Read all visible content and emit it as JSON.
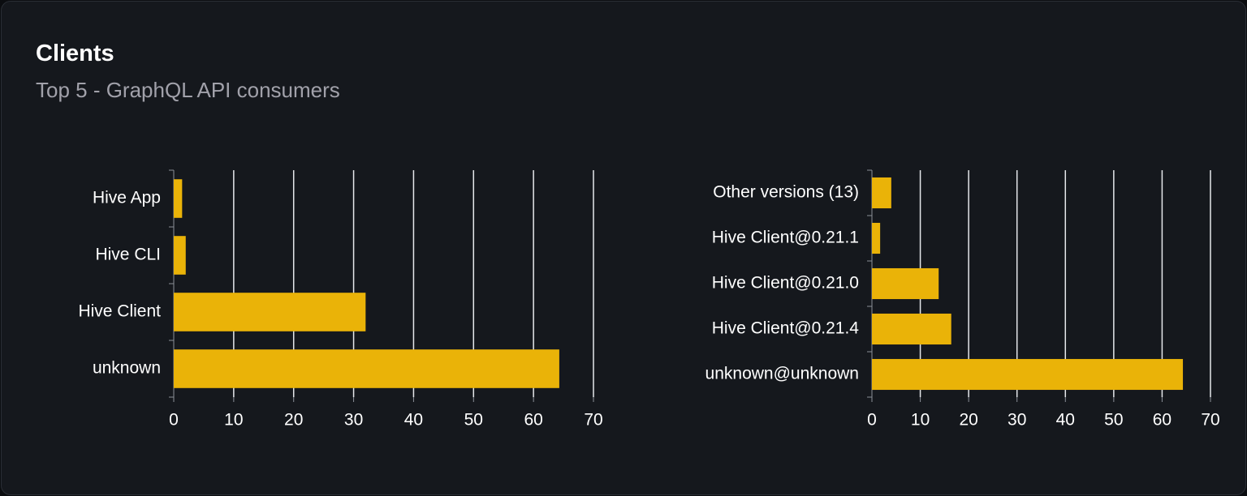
{
  "header": {
    "title": "Clients",
    "subtitle": "Top 5 - GraphQL API consumers"
  },
  "chart_data": [
    {
      "type": "bar",
      "orientation": "horizontal",
      "categories": [
        "Hive App",
        "Hive CLI",
        "Hive Client",
        "unknown"
      ],
      "values": [
        1.4,
        2,
        32,
        64.3
      ],
      "color": "#eab308",
      "xlim": [
        0,
        70
      ],
      "xticks": [
        0,
        10,
        20,
        30,
        40,
        50,
        60,
        70
      ],
      "grid": true
    },
    {
      "type": "bar",
      "orientation": "horizontal",
      "categories": [
        "Other versions (13)",
        "Hive Client@0.21.1",
        "Hive Client@0.21.0",
        "Hive Client@0.21.4",
        "unknown@unknown"
      ],
      "values": [
        4,
        1.7,
        13.8,
        16.4,
        64.3
      ],
      "color": "#eab308",
      "xlim": [
        0,
        70
      ],
      "xticks": [
        0,
        10,
        20,
        30,
        40,
        50,
        60,
        70
      ],
      "grid": true
    }
  ]
}
